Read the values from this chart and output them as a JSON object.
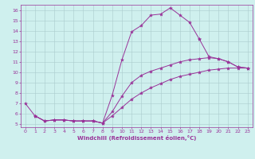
{
  "xlabel": "Windchill (Refroidissement éolien,°C)",
  "bg_color": "#cff0ee",
  "line_color": "#993399",
  "grid_color": "#aacccc",
  "xlim": [
    -0.5,
    23.5
  ],
  "ylim": [
    4.7,
    16.5
  ],
  "yticks": [
    5,
    6,
    7,
    8,
    9,
    10,
    11,
    12,
    13,
    14,
    15,
    16
  ],
  "xticks": [
    0,
    1,
    2,
    3,
    4,
    5,
    6,
    7,
    8,
    9,
    10,
    11,
    12,
    13,
    14,
    15,
    16,
    17,
    18,
    19,
    20,
    21,
    22,
    23
  ],
  "line1_x": [
    0,
    1,
    2,
    3,
    4,
    5,
    6,
    7,
    8,
    9,
    10,
    11,
    12,
    13,
    14,
    15,
    16,
    17,
    18
  ],
  "line1_y": [
    7.0,
    5.8,
    5.3,
    5.4,
    5.4,
    5.3,
    5.3,
    5.3,
    5.1,
    7.8,
    11.2,
    13.9,
    14.5,
    15.5,
    15.6,
    16.2,
    15.5,
    14.8,
    13.2
  ],
  "line2_x": [
    1,
    2,
    3,
    4,
    5,
    6,
    7,
    8,
    9,
    10,
    11,
    12,
    13,
    14,
    15,
    16,
    17,
    18,
    19,
    20,
    21,
    22,
    23
  ],
  "line2_y": [
    5.8,
    5.3,
    5.4,
    5.4,
    5.3,
    5.3,
    5.3,
    5.1,
    6.2,
    7.7,
    9.0,
    9.7,
    10.1,
    10.4,
    10.7,
    11.0,
    11.2,
    11.3,
    11.4,
    11.3,
    11.0,
    10.5,
    10.4
  ],
  "line3_x": [
    1,
    2,
    3,
    4,
    5,
    6,
    7,
    8,
    9,
    10,
    11,
    12,
    13,
    14,
    15,
    16,
    17,
    18,
    19,
    20,
    21,
    22,
    23
  ],
  "line3_y": [
    5.8,
    5.3,
    5.4,
    5.4,
    5.3,
    5.3,
    5.3,
    5.1,
    5.8,
    6.6,
    7.4,
    8.0,
    8.5,
    8.9,
    9.3,
    9.6,
    9.8,
    10.0,
    10.2,
    10.3,
    10.4,
    10.4,
    10.4
  ],
  "line4_x": [
    18,
    19,
    20,
    21,
    22,
    23
  ],
  "line4_y": [
    13.2,
    11.5,
    11.3,
    11.0,
    10.5,
    10.4
  ]
}
